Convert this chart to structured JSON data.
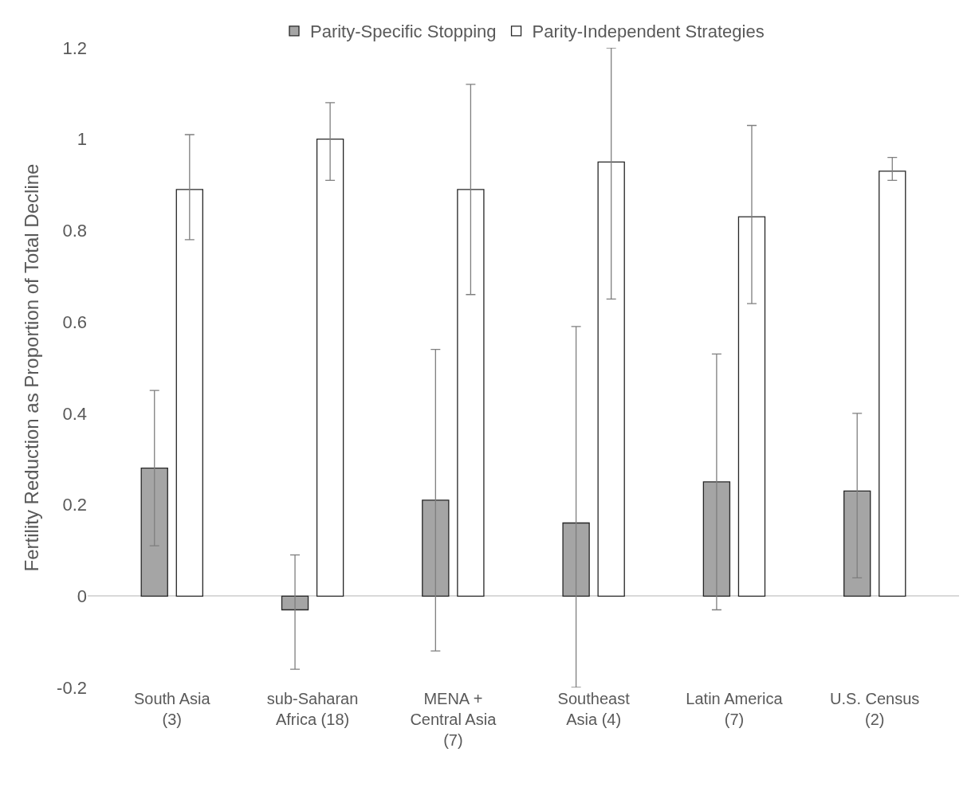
{
  "chart_data": {
    "type": "bar",
    "ylabel": "Fertility Reduction as Proportion of Total Decline",
    "categories": [
      "South Asia\n(3)",
      "sub-Saharan\nAfrica (18)",
      "MENA +\nCentral Asia\n(7)",
      "Southeast\nAsia (4)",
      "Latin America\n(7)",
      "U.S. Census\n(2)"
    ],
    "series": [
      {
        "name": "Parity-Specific Stopping",
        "color": "#a5a5a5",
        "values": [
          0.28,
          -0.03,
          0.21,
          0.16,
          0.25,
          0.23
        ],
        "errors": [
          [
            0.11,
            0.45
          ],
          [
            -0.16,
            0.09
          ],
          [
            -0.12,
            0.54
          ],
          [
            -0.2,
            0.59
          ],
          [
            -0.03,
            0.53
          ],
          [
            0.04,
            0.4
          ]
        ]
      },
      {
        "name": "Parity-Independent Strategies",
        "color": "#ffffff",
        "values": [
          0.89,
          1.0,
          0.89,
          0.95,
          0.83,
          0.93
        ],
        "errors": [
          [
            0.78,
            1.01
          ],
          [
            0.91,
            1.08
          ],
          [
            0.66,
            1.12
          ],
          [
            0.65,
            1.2
          ],
          [
            0.64,
            1.03
          ],
          [
            0.91,
            0.96
          ]
        ]
      }
    ],
    "ylim": [
      -0.2,
      1.2
    ],
    "yticks": [
      -0.2,
      0,
      0.2,
      0.4,
      0.6,
      0.8,
      1,
      1.2
    ],
    "legend": "top"
  }
}
